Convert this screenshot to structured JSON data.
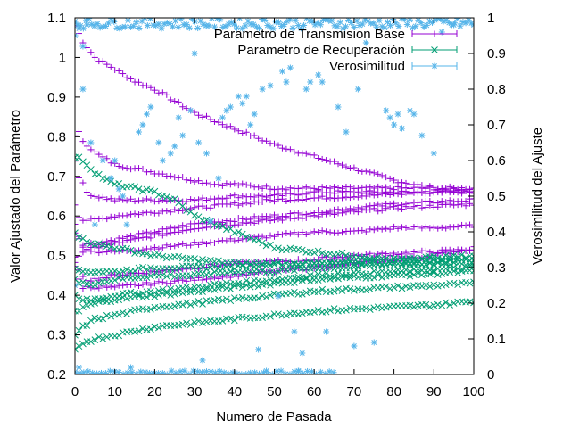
{
  "chart_data": {
    "type": "scatter",
    "xlabel": "Numero de Pasada",
    "ylabel": "Valor Ajustado del Parámetro",
    "y2label": "Verosimilitud del Ajuste",
    "xlim": [
      0,
      100
    ],
    "ylim": [
      0.2,
      1.1
    ],
    "y2lim": [
      0,
      1
    ],
    "xticks": [
      "0",
      "10",
      "20",
      "30",
      "40",
      "50",
      "60",
      "70",
      "80",
      "90",
      "100"
    ],
    "yticks": [
      "0.2",
      "0.3",
      "0.4",
      "0.5",
      "0.6",
      "0.7",
      "0.8",
      "0.9",
      "1",
      "1.1"
    ],
    "y2ticks": [
      "0",
      "0.1",
      "0.2",
      "0.3",
      "0.4",
      "0.5",
      "0.6",
      "0.7",
      "0.8",
      "0.9",
      "1"
    ],
    "grid": false,
    "legend_position": "top-right",
    "series": [
      {
        "name": "Parametro de Transmision Base",
        "marker": "+",
        "axis": "left",
        "color": "#9400d3",
        "trajectories": [
          {
            "x": [
              0,
              1,
              2,
              5,
              10,
              15,
              20,
              25,
              30,
              40,
              50,
              60,
              70,
              80,
              90,
              100
            ],
            "y": [
              1.08,
              1.06,
              1.04,
              1.0,
              0.97,
              0.94,
              0.92,
              0.89,
              0.86,
              0.82,
              0.78,
              0.75,
              0.72,
              0.69,
              0.67,
              0.66
            ]
          },
          {
            "x": [
              0,
              1,
              2,
              5,
              10,
              15,
              20,
              25,
              30,
              35,
              40,
              50,
              60,
              70,
              80,
              90,
              100
            ],
            "y": [
              0.8,
              0.81,
              0.79,
              0.76,
              0.73,
              0.72,
              0.71,
              0.7,
              0.69,
              0.68,
              0.68,
              0.67,
              0.67,
              0.67,
              0.67,
              0.67,
              0.67
            ]
          },
          {
            "x": [
              0,
              1,
              2,
              3,
              5,
              10,
              15,
              20,
              30,
              40,
              50,
              60,
              70,
              80,
              90,
              100
            ],
            "y": [
              0.74,
              0.7,
              0.68,
              0.66,
              0.65,
              0.64,
              0.64,
              0.64,
              0.64,
              0.65,
              0.65,
              0.66,
              0.66,
              0.66,
              0.66,
              0.66
            ]
          },
          {
            "x": [
              0,
              1,
              2,
              5,
              10,
              20,
              30,
              40,
              50,
              60,
              70,
              80,
              90,
              100
            ],
            "y": [
              0.63,
              0.6,
              0.59,
              0.59,
              0.6,
              0.61,
              0.62,
              0.63,
              0.64,
              0.645,
              0.65,
              0.655,
              0.66,
              0.665
            ]
          },
          {
            "x": [
              0,
              1,
              2,
              5,
              10,
              20,
              30,
              40,
              50,
              60,
              70,
              80,
              90,
              100
            ],
            "y": [
              0.58,
              0.55,
              0.53,
              0.53,
              0.54,
              0.56,
              0.58,
              0.59,
              0.6,
              0.61,
              0.62,
              0.63,
              0.635,
              0.64
            ]
          },
          {
            "x": [
              0,
              1,
              2,
              5,
              10,
              20,
              30,
              40,
              50,
              60,
              70,
              80,
              90,
              100
            ],
            "y": [
              0.5,
              0.5,
              0.51,
              0.52,
              0.53,
              0.55,
              0.57,
              0.58,
              0.59,
              0.6,
              0.61,
              0.62,
              0.625,
              0.63
            ]
          },
          {
            "x": [
              0,
              1,
              2,
              5,
              10,
              20,
              30,
              40,
              50,
              60,
              70,
              80,
              90,
              100
            ],
            "y": [
              0.56,
              0.54,
              0.52,
              0.51,
              0.51,
              0.52,
              0.53,
              0.54,
              0.55,
              0.56,
              0.56,
              0.57,
              0.57,
              0.575
            ]
          },
          {
            "x": [
              0,
              1,
              2,
              3,
              5,
              10,
              20,
              30,
              40,
              50,
              60,
              70,
              80,
              90,
              100
            ],
            "y": [
              0.48,
              0.46,
              0.45,
              0.44,
              0.44,
              0.45,
              0.46,
              0.47,
              0.48,
              0.485,
              0.49,
              0.5,
              0.505,
              0.51,
              0.515
            ]
          },
          {
            "x": [
              0,
              1,
              2,
              5,
              10,
              20,
              30,
              40,
              50,
              60,
              70,
              80,
              90,
              100
            ],
            "y": [
              0.47,
              0.44,
              0.42,
              0.42,
              0.42,
              0.43,
              0.44,
              0.45,
              0.46,
              0.47,
              0.48,
              0.49,
              0.5,
              0.52
            ]
          }
        ]
      },
      {
        "name": "Parametro de Recuperación",
        "marker": "x",
        "axis": "left",
        "color": "#009e73",
        "trajectories": [
          {
            "x": [
              0,
              2,
              5,
              8,
              10,
              15,
              20,
              25,
              30,
              40,
              50,
              60,
              70,
              80,
              90,
              100
            ],
            "y": [
              0.75,
              0.74,
              0.71,
              0.69,
              0.68,
              0.67,
              0.66,
              0.64,
              0.6,
              0.56,
              0.52,
              0.51,
              0.5,
              0.49,
              0.49,
              0.49
            ]
          },
          {
            "x": [
              0,
              1,
              2,
              5,
              10,
              15,
              20,
              30,
              40,
              50,
              60,
              70,
              80,
              90,
              100
            ],
            "y": [
              0.56,
              0.55,
              0.54,
              0.53,
              0.52,
              0.51,
              0.5,
              0.49,
              0.48,
              0.48,
              0.48,
              0.48,
              0.48,
              0.48,
              0.48
            ]
          },
          {
            "x": [
              0,
              1,
              2,
              5,
              10,
              20,
              30,
              40,
              50,
              60,
              70,
              80,
              90,
              100
            ],
            "y": [
              0.47,
              0.46,
              0.46,
              0.46,
              0.46,
              0.47,
              0.47,
              0.47,
              0.48,
              0.48,
              0.485,
              0.49,
              0.495,
              0.5
            ]
          },
          {
            "x": [
              0,
              1,
              2,
              5,
              10,
              20,
              30,
              40,
              50,
              60,
              70,
              80,
              90,
              100
            ],
            "y": [
              0.44,
              0.43,
              0.43,
              0.43,
              0.44,
              0.45,
              0.45,
              0.46,
              0.46,
              0.47,
              0.47,
              0.48,
              0.48,
              0.49
            ]
          },
          {
            "x": [
              0,
              1,
              2,
              5,
              10,
              20,
              30,
              40,
              50,
              60,
              70,
              80,
              90,
              100
            ],
            "y": [
              0.4,
              0.39,
              0.39,
              0.39,
              0.4,
              0.41,
              0.42,
              0.43,
              0.44,
              0.45,
              0.455,
              0.46,
              0.465,
              0.47
            ]
          },
          {
            "x": [
              0,
              1,
              2,
              5,
              10,
              20,
              30,
              40,
              50,
              60,
              70,
              80,
              90,
              100
            ],
            "y": [
              0.36,
              0.36,
              0.37,
              0.38,
              0.39,
              0.4,
              0.41,
              0.42,
              0.43,
              0.44,
              0.445,
              0.45,
              0.455,
              0.46
            ]
          },
          {
            "x": [
              0,
              1,
              2,
              5,
              10,
              20,
              30,
              40,
              50,
              60,
              70,
              80,
              90,
              100
            ],
            "y": [
              0.3,
              0.31,
              0.32,
              0.34,
              0.35,
              0.37,
              0.38,
              0.39,
              0.4,
              0.41,
              0.415,
              0.42,
              0.425,
              0.43
            ]
          },
          {
            "x": [
              0,
              1,
              2,
              5,
              10,
              20,
              30,
              40,
              50,
              60,
              70,
              80,
              90,
              100
            ],
            "y": [
              0.26,
              0.27,
              0.28,
              0.29,
              0.3,
              0.32,
              0.33,
              0.34,
              0.35,
              0.36,
              0.365,
              0.37,
              0.375,
              0.385
            ]
          }
        ]
      },
      {
        "name": "Verosimilitud",
        "marker": "*",
        "axis": "right",
        "color": "#56b4e9",
        "x": [
          0,
          0,
          0,
          1,
          1,
          2,
          2,
          3,
          4,
          5,
          5,
          7,
          9,
          10,
          11,
          12,
          13,
          14,
          16,
          17,
          18,
          19,
          21,
          22,
          24,
          25,
          26,
          27,
          29,
          30,
          31,
          32,
          33,
          34,
          36,
          37,
          38,
          39,
          41,
          42,
          43,
          44,
          45,
          46,
          47,
          48,
          49,
          51,
          52,
          53,
          54,
          55,
          56,
          57,
          58,
          59,
          61,
          62,
          63,
          66,
          68,
          70,
          71,
          73,
          75,
          78,
          79,
          80,
          81,
          82,
          84,
          85,
          87,
          90,
          92,
          95,
          100
        ],
        "y": [
          0.99,
          0.95,
          0.25,
          0.97,
          0.02,
          0.8,
          0.92,
          0.98,
          0.65,
          0.42,
          0.0,
          0.6,
          0.55,
          0.6,
          0.52,
          0.5,
          0.42,
          0.02,
          0.68,
          0.7,
          0.73,
          0.75,
          0.65,
          0.6,
          0.62,
          0.64,
          0.72,
          0.67,
          0.74,
          0.9,
          0.65,
          0.04,
          0.62,
          0.43,
          0.55,
          0.72,
          0.74,
          0.75,
          0.78,
          0.76,
          0.78,
          0.7,
          0.73,
          0.07,
          0.8,
          0.01,
          0.81,
          0.22,
          0.85,
          0.82,
          0.86,
          0.12,
          0.01,
          0.06,
          0.8,
          0.82,
          0.84,
          0.82,
          0.12,
          0.75,
          0.68,
          0.08,
          0.8,
          0.93,
          0.09,
          0.74,
          0.72,
          0.7,
          0.73,
          0.69,
          0.74,
          0.73,
          0.67,
          0.62,
          0.96,
          0.98,
          0.98
        ],
        "top_band": [
          0.97,
          1.0
        ],
        "bottom_band": [
          0.0,
          0.01
        ]
      }
    ]
  }
}
